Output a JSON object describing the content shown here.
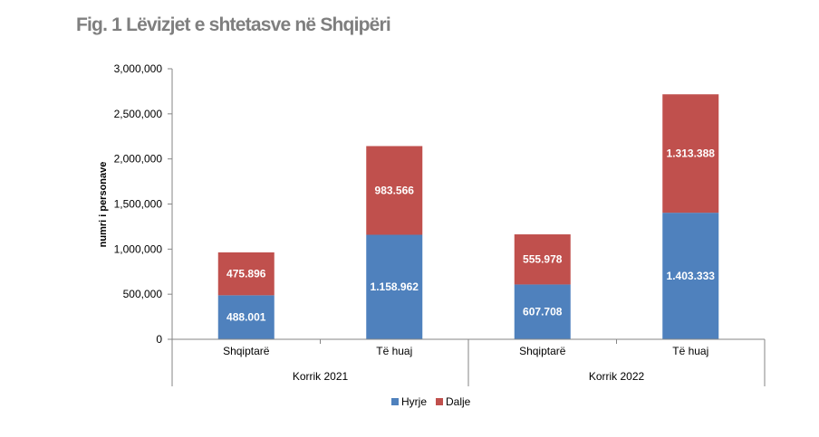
{
  "title": "Fig. 1 Lëvizjet e shtetasve në Shqipëri",
  "chart_data": {
    "type": "bar",
    "stacked": true,
    "title": "Fig. 1 Lëvizjet e shtetasve në Shqipëri",
    "xlabel": "",
    "ylabel": "numri i personave",
    "ylim": [
      0,
      3000000
    ],
    "yticks": [
      0,
      500000,
      1000000,
      1500000,
      2000000,
      2500000,
      3000000
    ],
    "ytick_labels": [
      "0",
      "500,000",
      "1,000,000",
      "1,500,000",
      "2,000,000",
      "2,500,000",
      "3,000,000"
    ],
    "groups": [
      "Korrik 2021",
      "Korrik 2022"
    ],
    "categories": [
      "Shqiptarë",
      "Të huaj",
      "Shqiptarë",
      "Të huaj"
    ],
    "category_group": [
      0,
      0,
      1,
      1
    ],
    "series": [
      {
        "name": "Hyrje",
        "color": "#4f81bd",
        "values": [
          488001,
          1158962,
          607708,
          1403333
        ],
        "labels": [
          "488.001",
          "1.158.962",
          "607.708",
          "1.403.333"
        ]
      },
      {
        "name": "Dalje",
        "color": "#c0504d",
        "values": [
          475896,
          983566,
          555978,
          1313388
        ],
        "labels": [
          "475.896",
          "983.566",
          "555.978",
          "1.313.388"
        ]
      }
    ],
    "grid": false,
    "legend_position": "bottom"
  }
}
